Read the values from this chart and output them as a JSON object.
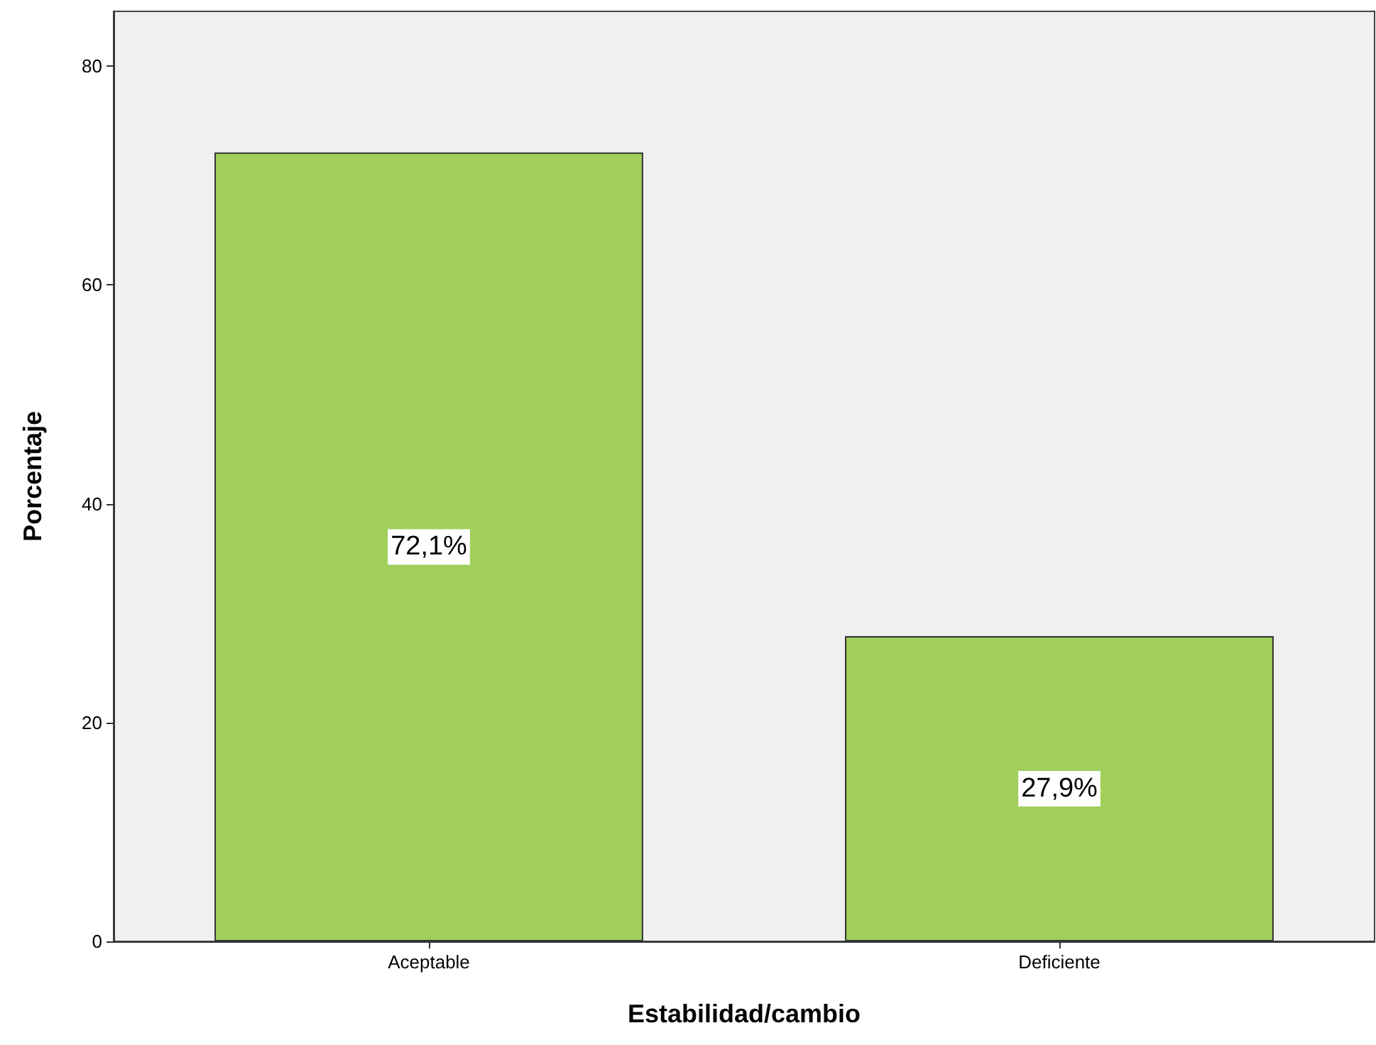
{
  "chart_data": {
    "type": "bar",
    "xlabel": "Estabilidad/cambio",
    "ylabel": "Porcentaje",
    "categories": [
      "Aceptable",
      "Deficiente"
    ],
    "values": [
      72.1,
      27.9
    ],
    "value_labels": [
      "72,1%",
      "27,9%"
    ],
    "color": "#a0cf5c",
    "ylim": [
      0,
      85
    ],
    "yticks": [
      0,
      20,
      40,
      60,
      80
    ],
    "grid": false
  }
}
